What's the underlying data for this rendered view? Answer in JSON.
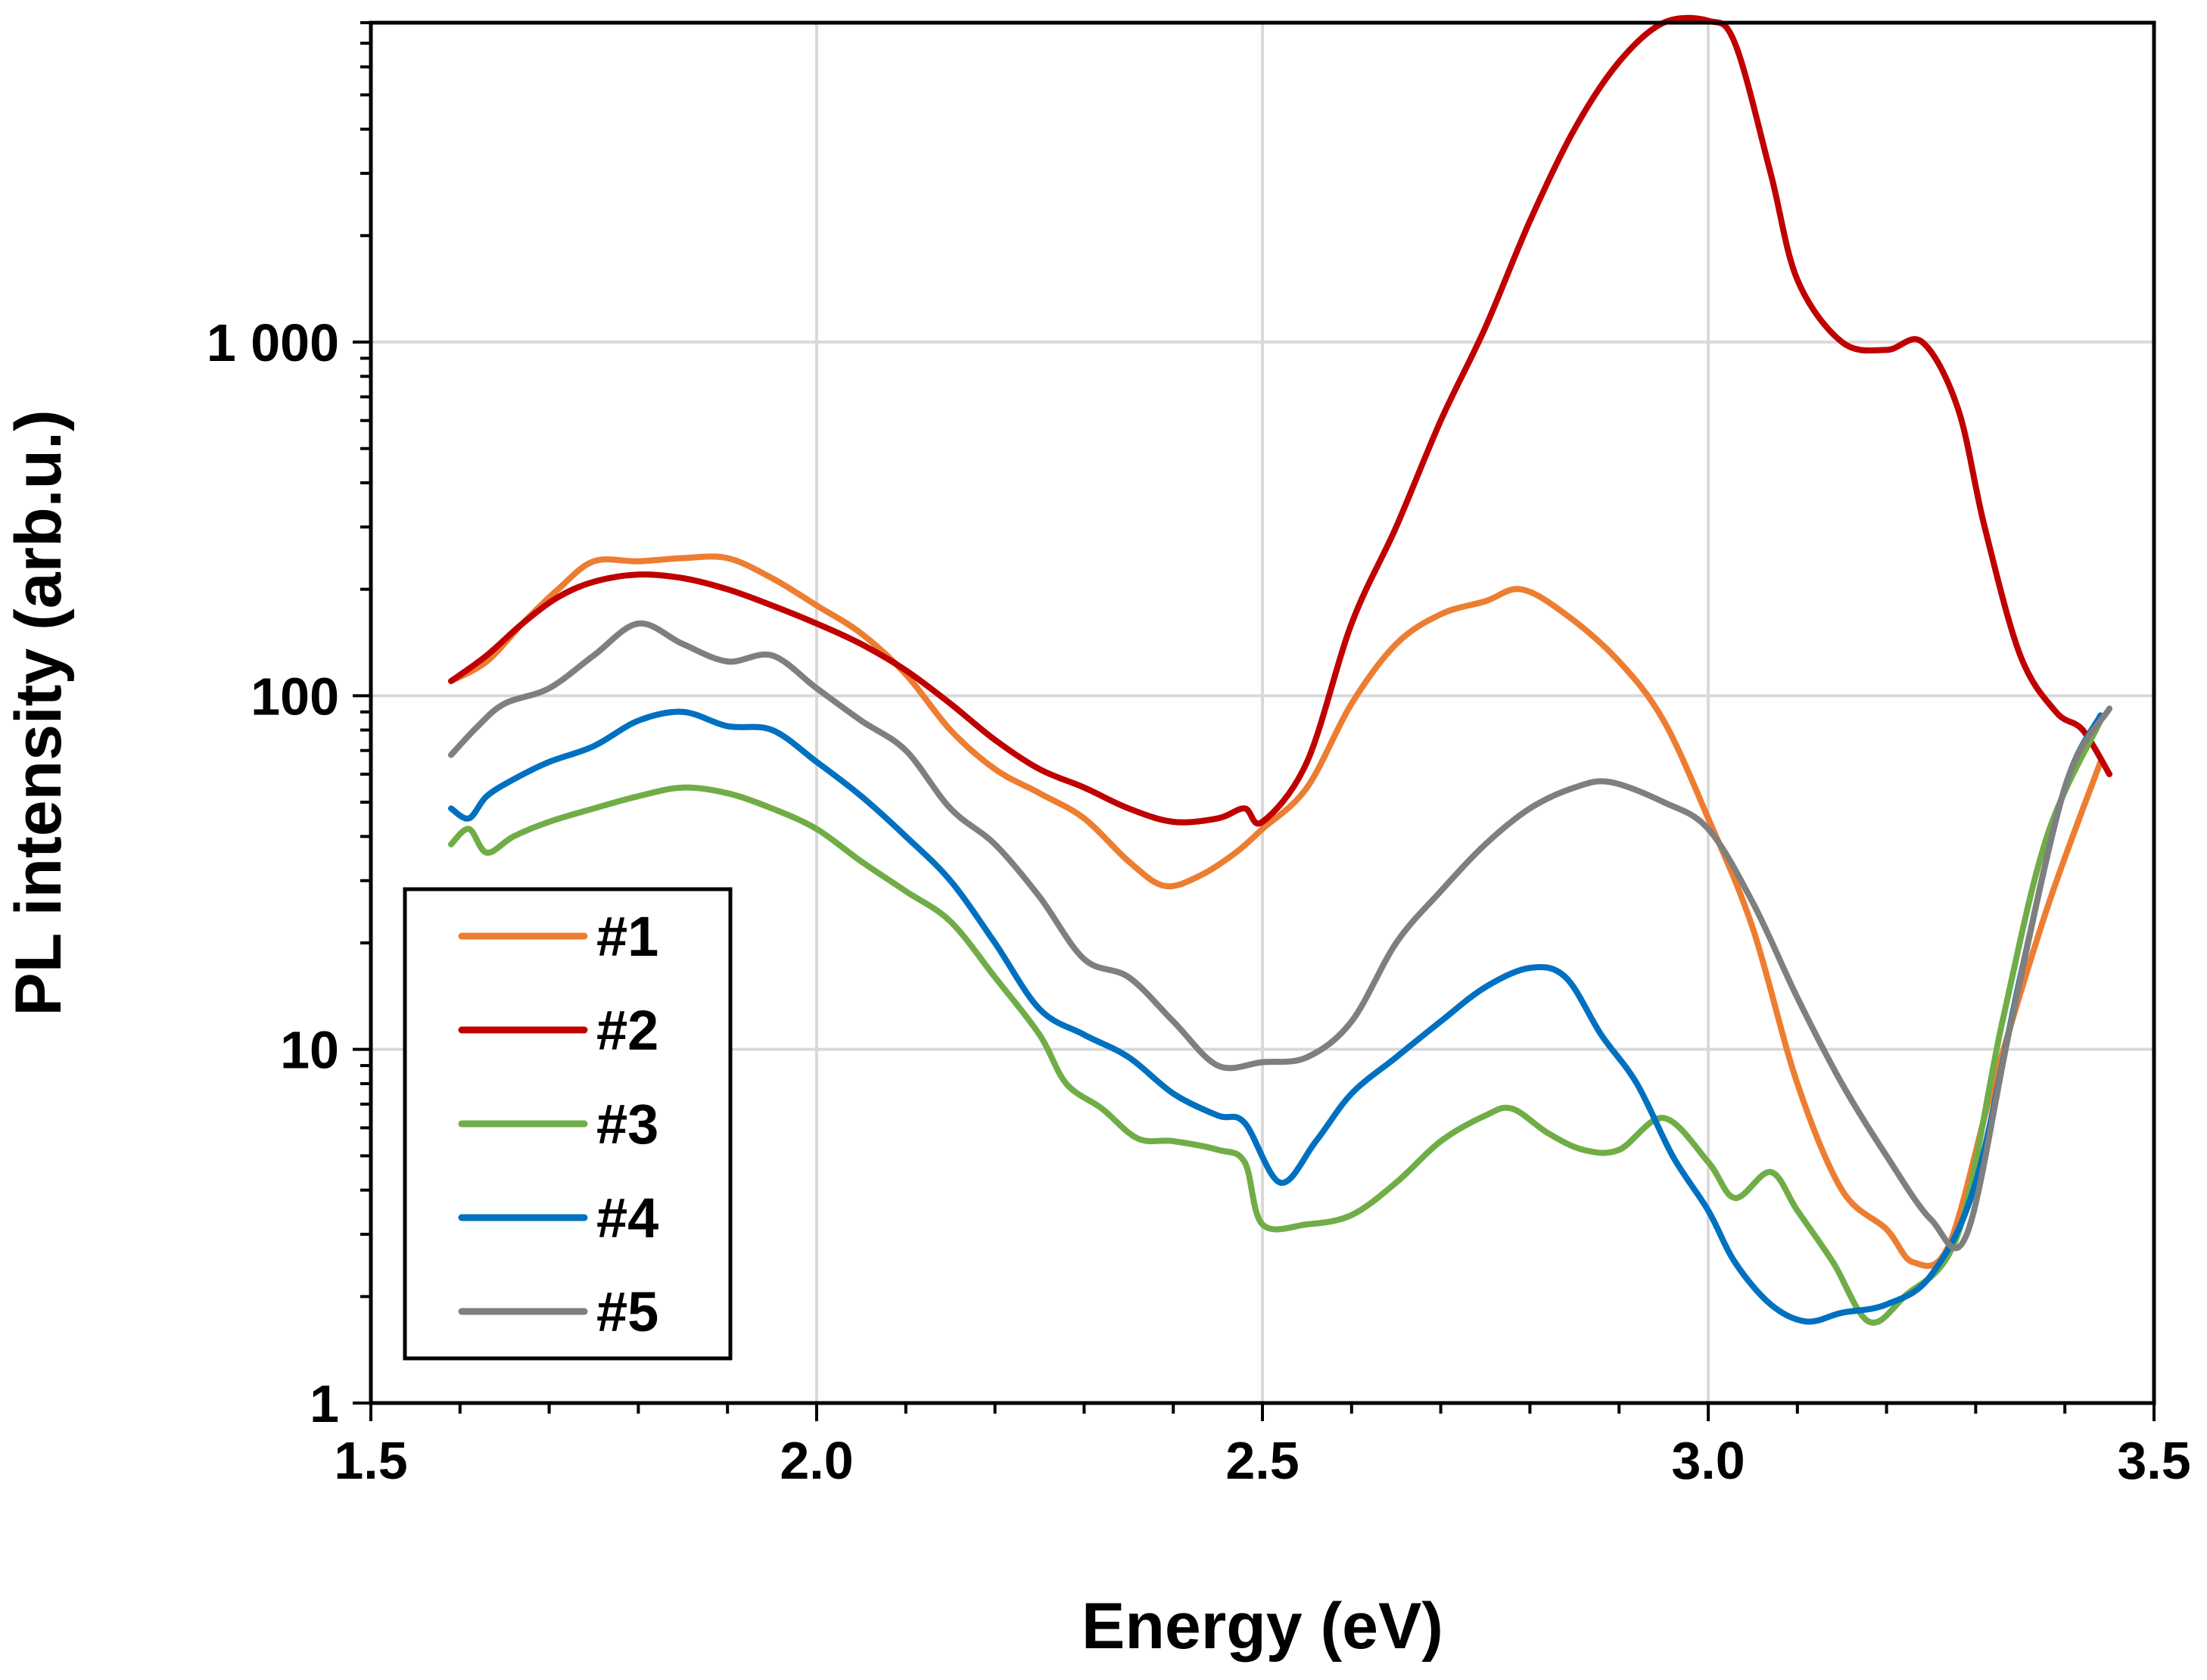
{
  "chart_data": {
    "type": "line",
    "title": "",
    "xlabel": "Energy (eV)",
    "ylabel": "PL intensity (arb.u.)",
    "xlim": [
      1.5,
      3.5
    ],
    "ylim": [
      1,
      8000
    ],
    "yscale": "log",
    "grid": true,
    "legend_position": "bottom-left",
    "x_ticks": [
      1.5,
      2.0,
      2.5,
      3.0,
      3.5
    ],
    "x_tick_labels": [
      "1.5",
      "2.0",
      "2.5",
      "3.0",
      "3.5"
    ],
    "y_ticks": [
      1,
      10,
      100,
      1000
    ],
    "y_tick_labels": [
      "1",
      "10",
      "100",
      "1 000"
    ],
    "series": [
      {
        "name": "#1",
        "color": "#ed7d31",
        "x": [
          1.59,
          1.63,
          1.67,
          1.71,
          1.75,
          1.8,
          1.85,
          1.9,
          1.95,
          2.0,
          2.05,
          2.1,
          2.15,
          2.2,
          2.25,
          2.3,
          2.35,
          2.39,
          2.43,
          2.47,
          2.5,
          2.55,
          2.6,
          2.65,
          2.7,
          2.75,
          2.79,
          2.84,
          2.9,
          2.95,
          3.0,
          3.05,
          3.1,
          3.15,
          3.2,
          3.23,
          3.27,
          3.32,
          3.38,
          3.44
        ],
        "y": [
          110,
          125,
          160,
          200,
          240,
          240,
          245,
          245,
          215,
          180,
          150,
          115,
          80,
          62,
          53,
          45,
          34,
          29,
          31,
          36,
          42,
          55,
          95,
          140,
          170,
          185,
          200,
          170,
          125,
          85,
          45,
          22,
          8,
          4,
          3.1,
          2.5,
          2.8,
          8,
          25,
          65
        ]
      },
      {
        "name": "#2",
        "color": "#c00000",
        "x": [
          1.59,
          1.63,
          1.67,
          1.71,
          1.75,
          1.8,
          1.85,
          1.9,
          1.95,
          2.0,
          2.05,
          2.1,
          2.15,
          2.2,
          2.25,
          2.3,
          2.35,
          2.4,
          2.45,
          2.48,
          2.5,
          2.55,
          2.6,
          2.65,
          2.7,
          2.75,
          2.8,
          2.85,
          2.9,
          2.95,
          3.0,
          3.03,
          3.07,
          3.1,
          3.15,
          3.2,
          3.24,
          3.28,
          3.31,
          3.35,
          3.39,
          3.42,
          3.45
        ],
        "y": [
          110,
          130,
          160,
          190,
          210,
          220,
          215,
          200,
          180,
          160,
          140,
          118,
          95,
          75,
          62,
          55,
          48,
          44,
          45,
          48,
          44,
          65,
          160,
          300,
          600,
          1100,
          2200,
          4000,
          6200,
          8000,
          8100,
          7000,
          3000,
          1500,
          1000,
          950,
          1000,
          650,
          300,
          130,
          90,
          80,
          60
        ]
      },
      {
        "name": "#3",
        "color": "#70ad47",
        "x": [
          1.59,
          1.61,
          1.63,
          1.66,
          1.7,
          1.75,
          1.8,
          1.85,
          1.9,
          1.95,
          2.0,
          2.05,
          2.1,
          2.15,
          2.2,
          2.25,
          2.28,
          2.32,
          2.36,
          2.4,
          2.45,
          2.48,
          2.5,
          2.55,
          2.6,
          2.65,
          2.7,
          2.75,
          2.78,
          2.82,
          2.86,
          2.9,
          2.95,
          3.0,
          3.03,
          3.07,
          3.1,
          3.14,
          3.18,
          3.22,
          3.28,
          3.33,
          3.38,
          3.44
        ],
        "y": [
          38,
          42,
          36,
          40,
          44,
          48,
          52,
          55,
          53,
          48,
          42,
          34,
          28,
          23,
          16,
          11,
          8,
          6.8,
          5.6,
          5.5,
          5.2,
          4.8,
          3.2,
          3.2,
          3.4,
          4.2,
          5.5,
          6.5,
          6.8,
          5.8,
          5.2,
          5.2,
          6.4,
          4.8,
          3.8,
          4.5,
          3.5,
          2.5,
          1.7,
          2.0,
          3.0,
          12,
          40,
          85
        ]
      },
      {
        "name": "#4",
        "color": "#0070c0",
        "x": [
          1.59,
          1.61,
          1.63,
          1.66,
          1.7,
          1.75,
          1.8,
          1.85,
          1.9,
          1.95,
          2.0,
          2.05,
          2.1,
          2.15,
          2.2,
          2.25,
          2.3,
          2.35,
          2.4,
          2.45,
          2.48,
          2.52,
          2.56,
          2.6,
          2.65,
          2.7,
          2.75,
          2.8,
          2.84,
          2.88,
          2.92,
          2.96,
          3.0,
          3.03,
          3.07,
          3.11,
          3.15,
          3.2,
          3.25,
          3.3,
          3.35,
          3.4,
          3.44
        ],
        "y": [
          48,
          45,
          52,
          58,
          65,
          72,
          85,
          90,
          82,
          80,
          65,
          52,
          40,
          30,
          20,
          13,
          11,
          9.5,
          7.5,
          6.5,
          6.2,
          4.2,
          5.5,
          7.5,
          9.5,
          12,
          15,
          17,
          16,
          11,
          8,
          5,
          3.5,
          2.5,
          1.9,
          1.7,
          1.8,
          1.9,
          2.3,
          4.2,
          16,
          55,
          88
        ]
      },
      {
        "name": "#5",
        "color": "#7f7f7f",
        "x": [
          1.59,
          1.62,
          1.65,
          1.7,
          1.75,
          1.8,
          1.85,
          1.9,
          1.95,
          2.0,
          2.05,
          2.1,
          2.15,
          2.2,
          2.25,
          2.3,
          2.35,
          2.4,
          2.45,
          2.5,
          2.55,
          2.6,
          2.65,
          2.7,
          2.75,
          2.8,
          2.85,
          2.89,
          2.95,
          3.0,
          3.05,
          3.1,
          3.15,
          3.2,
          3.25,
          3.29,
          3.34,
          3.4,
          3.45
        ],
        "y": [
          68,
          82,
          95,
          105,
          130,
          160,
          140,
          125,
          130,
          105,
          85,
          70,
          48,
          38,
          27,
          18,
          16,
          12,
          9,
          9.2,
          9.5,
          12,
          20,
          28,
          38,
          48,
          55,
          57,
          50,
          42,
          26,
          14,
          8,
          5,
          3.3,
          3.0,
          12,
          55,
          92
        ]
      }
    ]
  }
}
